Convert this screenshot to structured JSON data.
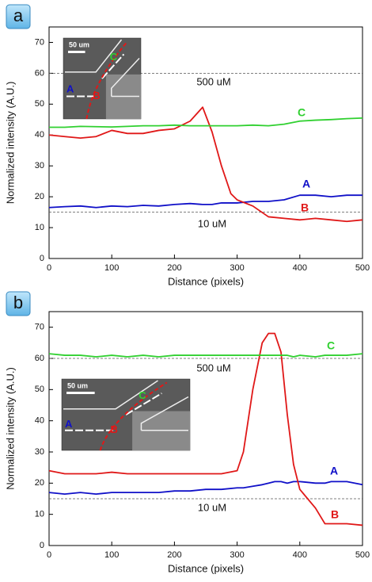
{
  "chart_data": [
    {
      "type": "line",
      "panel_label": "a",
      "x_label": "Distance (pixels)",
      "y_label": "Normalized intensity (A.U.)",
      "x": [
        0,
        25,
        50,
        75,
        100,
        125,
        150,
        175,
        200,
        225,
        245,
        260,
        275,
        290,
        300,
        325,
        350,
        375,
        400,
        425,
        450,
        475,
        500
      ],
      "series": [
        {
          "name": "A",
          "color": "#1010c8",
          "values": [
            16.5,
            16.8,
            17,
            16.5,
            17,
            16.8,
            17.2,
            17,
            17.5,
            17.8,
            17.5,
            17.5,
            18,
            18,
            18,
            18.5,
            18.5,
            19,
            20.5,
            20.5,
            20,
            20.5,
            20.5
          ]
        },
        {
          "name": "B",
          "color": "#e01818",
          "values": [
            40,
            39.5,
            39,
            39.5,
            41.5,
            40.5,
            40.5,
            41.5,
            42,
            44.5,
            49,
            41,
            30,
            21,
            19,
            17,
            13.5,
            13,
            12.5,
            13,
            12.5,
            12,
            12.5
          ]
        },
        {
          "name": "C",
          "color": "#30d030",
          "values": [
            42.5,
            42.5,
            42.8,
            42.7,
            42.6,
            42.8,
            43,
            43,
            43.2,
            43,
            43,
            43,
            43,
            43,
            43,
            43.2,
            43,
            43.5,
            44.5,
            44.8,
            45,
            45.3,
            45.5
          ]
        }
      ],
      "reference_lines": [
        {
          "value": 60,
          "label": "500 uM"
        },
        {
          "value": 15,
          "label": "10 uM"
        }
      ],
      "inset": {
        "scale_label": "50 um",
        "labels": [
          "A",
          "B",
          "C"
        ]
      },
      "xlim": [
        0,
        500
      ],
      "xticks": [
        0,
        100,
        200,
        300,
        400,
        500
      ],
      "ylim": [
        0,
        75
      ],
      "yticks": [
        0,
        10,
        20,
        30,
        40,
        50,
        60,
        70
      ]
    },
    {
      "type": "line",
      "panel_label": "b",
      "x_label": "Distance (pixels)",
      "y_label": "Normalized intensity (A.U.)",
      "x": [
        0,
        25,
        50,
        75,
        100,
        125,
        150,
        175,
        200,
        225,
        250,
        275,
        300,
        310,
        325,
        340,
        350,
        360,
        370,
        380,
        390,
        400,
        425,
        440,
        450,
        475,
        500
      ],
      "series": [
        {
          "name": "A",
          "color": "#1010c8",
          "values": [
            17,
            16.5,
            17,
            16.5,
            17,
            17,
            17,
            17,
            17.5,
            17.5,
            18,
            18,
            18.5,
            18.5,
            19,
            19.5,
            20,
            20.5,
            20.5,
            20,
            20.5,
            20.5,
            20,
            20,
            20.5,
            20.5,
            19.5
          ]
        },
        {
          "name": "B",
          "color": "#e01818",
          "values": [
            24,
            23,
            23,
            23,
            23.5,
            23,
            23,
            23,
            23,
            23,
            23,
            23,
            24,
            30,
            50,
            65,
            68,
            68,
            62,
            42,
            26,
            18,
            12,
            7,
            7,
            7,
            6.5
          ]
        },
        {
          "name": "C",
          "color": "#30d030",
          "values": [
            61.5,
            61,
            61,
            60.5,
            61,
            60.5,
            61,
            60.5,
            61,
            61,
            61,
            61,
            61,
            61,
            61,
            61,
            61,
            61,
            61,
            61,
            60.5,
            61,
            60.5,
            61,
            61,
            61,
            61.5
          ]
        }
      ],
      "reference_lines": [
        {
          "value": 60,
          "label": "500 uM"
        },
        {
          "value": 15,
          "label": "10 uM"
        }
      ],
      "inset": {
        "scale_label": "50 um",
        "labels": [
          "A",
          "B",
          "C"
        ]
      },
      "xlim": [
        0,
        500
      ],
      "xticks": [
        0,
        100,
        200,
        300,
        400,
        500
      ],
      "ylim": [
        0,
        75
      ],
      "yticks": [
        0,
        10,
        20,
        30,
        40,
        50,
        60,
        70
      ]
    }
  ]
}
